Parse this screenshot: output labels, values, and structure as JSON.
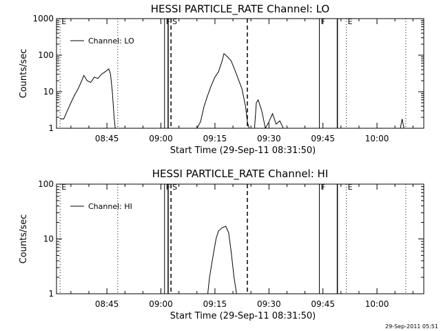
{
  "chart_data": [
    {
      "type": "line",
      "title": "HESSI PARTICLE_RATE Channel: LO",
      "xlabel": "Start Time (29-Sep-11 08:31:50)",
      "ylabel": "Counts/sec",
      "yscale": "log",
      "ylim": [
        1,
        1000
      ],
      "xlim": [
        "08:31:50",
        "10:13:40"
      ],
      "x_ticks": [
        "08:45",
        "09:00",
        "09:15",
        "09:30",
        "09:45",
        "10:00"
      ],
      "y_ticks": [
        "1",
        "10",
        "100",
        "1000"
      ],
      "legend": {
        "position": "top-left",
        "entries": [
          "Channel: LO"
        ]
      },
      "grid": false,
      "markers": [
        {
          "x": "08:32",
          "label": "E",
          "style": "dotted"
        },
        {
          "x": "08:48",
          "label": "",
          "style": "dotted"
        },
        {
          "x": "09:01",
          "label": "F",
          "style": "solid"
        },
        {
          "x": "09:02.8",
          "label": "S",
          "style": "dashed"
        },
        {
          "x": "09:02",
          "label": "",
          "style": "solid"
        },
        {
          "x": "09:24",
          "label": "",
          "style": "dashed"
        },
        {
          "x": "09:44",
          "label": "F",
          "style": "solid"
        },
        {
          "x": "09:49",
          "label": "",
          "style": "solid"
        },
        {
          "x": "09:51.5",
          "label": "E",
          "style": "dotted"
        },
        {
          "x": "10:08",
          "label": "",
          "style": "dotted"
        }
      ],
      "series": [
        {
          "name": "Channel: LO",
          "points": [
            [
              "08:32",
              1.8
            ],
            [
              "08:33",
              1.8
            ],
            [
              "08:34",
              3
            ],
            [
              "08:35",
              5
            ],
            [
              "08:36",
              8
            ],
            [
              "08:37",
              12
            ],
            [
              "08:38",
              20
            ],
            [
              "08:38.6",
              28
            ],
            [
              "08:39.5",
              20
            ],
            [
              "08:40.5",
              18
            ],
            [
              "08:41.5",
              25
            ],
            [
              "08:42.5",
              23
            ],
            [
              "08:43.5",
              30
            ],
            [
              "08:44.5",
              35
            ],
            [
              "08:45.5",
              42
            ],
            [
              "08:46",
              30
            ],
            [
              "08:46.5",
              10
            ],
            [
              "08:47",
              2
            ],
            [
              "08:47.3",
              1
            ],
            [
              "09:10",
              1
            ],
            [
              "09:11",
              1.5
            ],
            [
              "09:12",
              4
            ],
            [
              "09:13",
              8
            ],
            [
              "09:14",
              15
            ],
            [
              "09:15",
              25
            ],
            [
              "09:16",
              35
            ],
            [
              "09:17",
              70
            ],
            [
              "09:17.5",
              110
            ],
            [
              "09:18.5",
              90
            ],
            [
              "09:19.5",
              70
            ],
            [
              "09:20.5",
              40
            ],
            [
              "09:21.5",
              22
            ],
            [
              "09:22.5",
              12
            ],
            [
              "09:23.5",
              4
            ],
            [
              "09:24",
              1.5
            ],
            [
              "09:24.5",
              1
            ],
            [
              "09:26",
              1
            ],
            [
              "09:26.5",
              5
            ],
            [
              "09:27",
              6
            ],
            [
              "09:28",
              3
            ],
            [
              "09:29",
              1
            ],
            [
              "09:30",
              1.5
            ],
            [
              "09:31",
              2.5
            ],
            [
              "09:32",
              1.3
            ],
            [
              "09:33",
              1.6
            ],
            [
              "09:34",
              1
            ],
            [
              "10:06.5",
              1
            ],
            [
              "10:07",
              1.8
            ],
            [
              "10:07.5",
              1
            ]
          ]
        }
      ]
    },
    {
      "type": "line",
      "title": "HESSI PARTICLE_RATE Channel: HI",
      "xlabel": "Start Time (29-Sep-11 08:31:50)",
      "ylabel": "Counts/sec",
      "yscale": "log",
      "ylim": [
        1,
        100
      ],
      "xlim": [
        "08:31:50",
        "10:13:40"
      ],
      "x_ticks": [
        "08:45",
        "09:00",
        "09:15",
        "09:30",
        "09:45",
        "10:00"
      ],
      "y_ticks": [
        "1",
        "10",
        "100"
      ],
      "legend": {
        "position": "top-left",
        "entries": [
          "Channel: HI"
        ]
      },
      "grid": false,
      "markers": [
        {
          "x": "08:32",
          "label": "E",
          "style": "dotted"
        },
        {
          "x": "08:48",
          "label": "",
          "style": "dotted"
        },
        {
          "x": "09:01",
          "label": "F",
          "style": "solid"
        },
        {
          "x": "09:02.8",
          "label": "S",
          "style": "dashed"
        },
        {
          "x": "09:02",
          "label": "",
          "style": "solid"
        },
        {
          "x": "09:24",
          "label": "",
          "style": "dashed"
        },
        {
          "x": "09:44",
          "label": "F",
          "style": "solid"
        },
        {
          "x": "09:49",
          "label": "",
          "style": "solid"
        },
        {
          "x": "09:51.5",
          "label": "E",
          "style": "dotted"
        },
        {
          "x": "10:08",
          "label": "",
          "style": "dotted"
        }
      ],
      "series": [
        {
          "name": "Channel: HI",
          "points": [
            [
              "09:13",
              1
            ],
            [
              "09:13.5",
              2
            ],
            [
              "09:14.5",
              5
            ],
            [
              "09:15.3",
              10
            ],
            [
              "09:16",
              14
            ],
            [
              "09:17",
              16
            ],
            [
              "09:18",
              17
            ],
            [
              "09:18.8",
              13
            ],
            [
              "09:19.5",
              6
            ],
            [
              "09:20.3",
              2
            ],
            [
              "09:21",
              1
            ]
          ]
        }
      ]
    }
  ],
  "footer": {
    "timestamp": "29-Sep-2011 05:51"
  }
}
